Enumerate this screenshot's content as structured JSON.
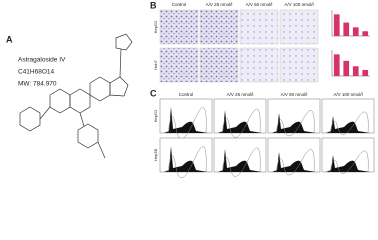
{
  "panel_a": {
    "label": "A",
    "compound": "Astragaloside IV",
    "formula": "C41H68O14",
    "mw": "MW: 784.970"
  },
  "panel_b": {
    "label": "B",
    "columns": [
      "Control",
      "A/V 25 nmol/l",
      "A/V 50 nmol/l",
      "A/V 100 nmol/l"
    ],
    "rows": [
      "HepG2",
      "Huh7"
    ]
  },
  "panel_c": {
    "label": "C",
    "columns": [
      "Control",
      "A/V 25 nmol/l",
      "A/V 50 nmol/l",
      "A/V 100 nmol/l"
    ],
    "rows": [
      "HepG2",
      "Hep3B"
    ]
  },
  "chart_data": [
    {
      "type": "bar",
      "categories": [
        null,
        null,
        null,
        null
      ],
      "values": [
        100,
        62,
        40,
        22
      ],
      "color": "#d6336c",
      "ylim": [
        0,
        120
      ]
    },
    {
      "type": "bar",
      "categories": [
        null,
        null,
        null,
        null
      ],
      "values": [
        100,
        70,
        45,
        28
      ],
      "color": "#d6336c",
      "ylim": [
        0,
        120
      ]
    }
  ]
}
